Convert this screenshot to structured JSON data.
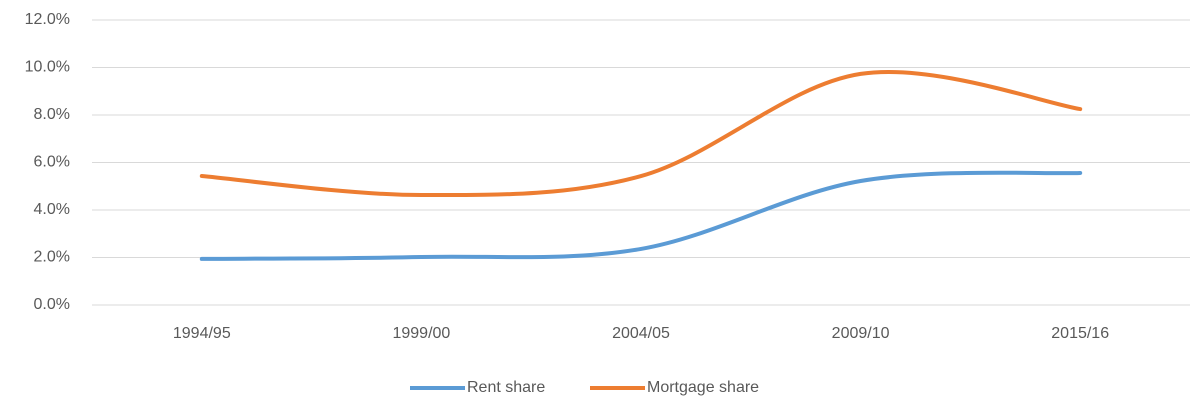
{
  "chart_data": {
    "type": "line",
    "categories": [
      "1994/95",
      "1999/00",
      "2004/05",
      "2009/10",
      "2015/16"
    ],
    "series": [
      {
        "name": "Rent share",
        "color": "#5b9bd5",
        "values": [
          1.94,
          2.02,
          2.36,
          5.22,
          5.56
        ]
      },
      {
        "name": "Mortgage share",
        "color": "#ed7d31",
        "values": [
          5.43,
          4.63,
          5.43,
          9.73,
          8.25
        ]
      }
    ],
    "ylim": [
      0,
      12
    ],
    "yticks": [
      {
        "value": 0,
        "label": "0.0%"
      },
      {
        "value": 2,
        "label": "2.0%"
      },
      {
        "value": 4,
        "label": "4.0%"
      },
      {
        "value": 6,
        "label": "6.0%"
      },
      {
        "value": 8,
        "label": "8.0%"
      },
      {
        "value": 10,
        "label": "10.0%"
      },
      {
        "value": 12,
        "label": "12.0%"
      }
    ],
    "grid": true,
    "smooth": true,
    "legend": "bottom"
  }
}
